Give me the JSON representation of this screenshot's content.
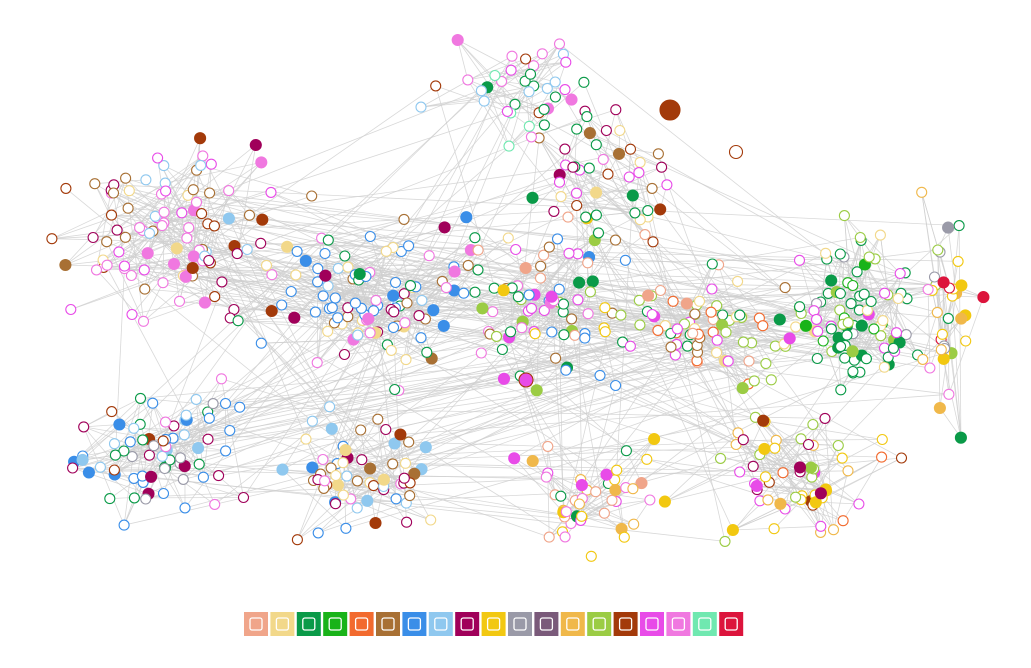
{
  "legend": {
    "colors": [
      "#f0a58a",
      "#f2d88a",
      "#0a9a48",
      "#19b319",
      "#f26a2e",
      "#a87034",
      "#3a8ee8",
      "#8fc8ef",
      "#a0005a",
      "#f2c811",
      "#9a9aa8",
      "#7a5a7a",
      "#f0b84a",
      "#9bcc44",
      "#a33a0a",
      "#e84be8",
      "#f078e0",
      "#70e8b0",
      "#dc143c"
    ]
  }
}
